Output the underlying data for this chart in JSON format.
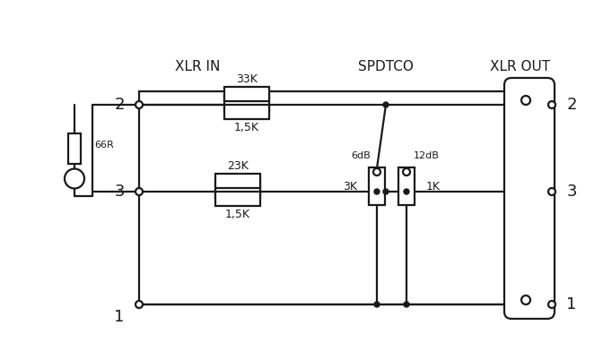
{
  "bg_color": "#ffffff",
  "line_color": "#1a1a1a",
  "lw": 1.6,
  "xlr_in_label": "XLR IN",
  "xlr_out_label": "XLR OUT",
  "spdtco_label": "SPDTCO",
  "pin2_label": "2",
  "pin3_label": "3",
  "pin1_label": "1",
  "r33k_label": "33K",
  "r15k_top_label": "1,5K",
  "r23k_label": "23K",
  "r15k_bot_label": "1,5K",
  "r66r_label": "66R",
  "r3k_label": "3K",
  "r1k_label": "1K",
  "r6db_label": "6dB",
  "r12db_label": "12dB"
}
